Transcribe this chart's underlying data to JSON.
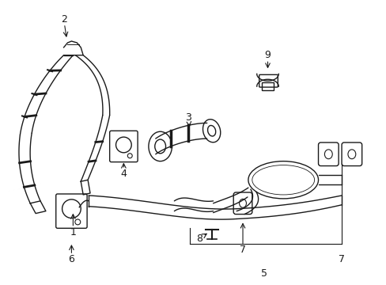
{
  "bg_color": "#ffffff",
  "line_color": "#1a1a1a",
  "line_width": 1.0,
  "fig_width": 4.89,
  "fig_height": 3.6,
  "dpi": 100
}
